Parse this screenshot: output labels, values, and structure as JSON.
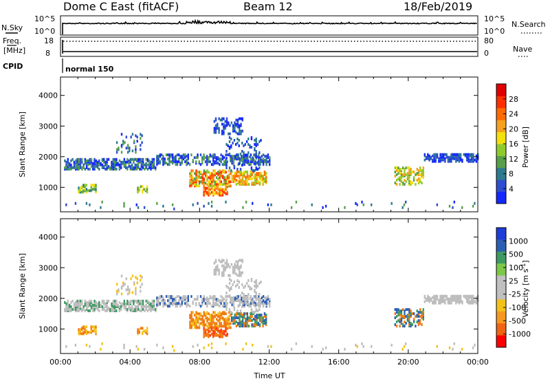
{
  "header": {
    "title": "Dome C East (fitACF)",
    "beam": "Beam 12",
    "date": "18/Feb/2019"
  },
  "top_panels": {
    "nsky": {
      "label": "N.Sky",
      "ticks": [
        "10^5",
        "10^0"
      ]
    },
    "nsearch": {
      "label": "N.Search",
      "ticks": [
        "10^5",
        "10^0"
      ]
    },
    "freq": {
      "label_line1": "Freq.",
      "label_line2": "[MHz]",
      "ticks": [
        "18",
        "8"
      ]
    },
    "nave": {
      "label": "Nave",
      "ticks": [
        "80",
        "0"
      ]
    },
    "cpid": {
      "label": "CPID",
      "value": "normal 150"
    }
  },
  "chart_data": [
    {
      "type": "heatmap",
      "title": "",
      "quantity": "Power [dB]",
      "xlabel": "",
      "ylabel": "Slant Range [km]",
      "xlim": [
        0,
        24
      ],
      "ylim": [
        200,
        4600
      ],
      "yticks": [
        1000,
        2000,
        3000,
        4000
      ],
      "colorbar": {
        "label": "Power [dB]",
        "ticks": [
          "4",
          "8",
          "12",
          "16",
          "20",
          "24",
          "28"
        ],
        "colors": [
          "#1428ff",
          "#2f4dd1",
          "#2d7a8f",
          "#57a04a",
          "#8ecb2e",
          "#f3e00c",
          "#f6a020",
          "#ff6a00",
          "#ff2f00",
          "#e00000"
        ]
      }
    },
    {
      "type": "heatmap",
      "title": "",
      "quantity": "Velocity [m s^-1]",
      "xlabel": "Time UT",
      "ylabel": "Slant Range [km]",
      "xlim": [
        0,
        24
      ],
      "ylim": [
        200,
        4600
      ],
      "yticks": [
        1000,
        2000,
        3000,
        4000
      ],
      "xticks": [
        "00:00",
        "04:00",
        "08:00",
        "12:00",
        "16:00",
        "20:00",
        "00:00"
      ],
      "colorbar": {
        "label": "Velocity [m s",
        "label_exp": "-1",
        "label_end": "]",
        "ticks": [
          "1000",
          "500",
          "100",
          "25",
          "-25",
          "-100",
          "-500",
          "-1000"
        ],
        "colors": [
          "#1e3cd8",
          "#2c5fb4",
          "#3d9a62",
          "#7dc84a",
          "#c0c0c0",
          "#c0c0c0",
          "#f3c21a",
          "#f69820",
          "#f06414",
          "#ff0000"
        ]
      }
    }
  ]
}
